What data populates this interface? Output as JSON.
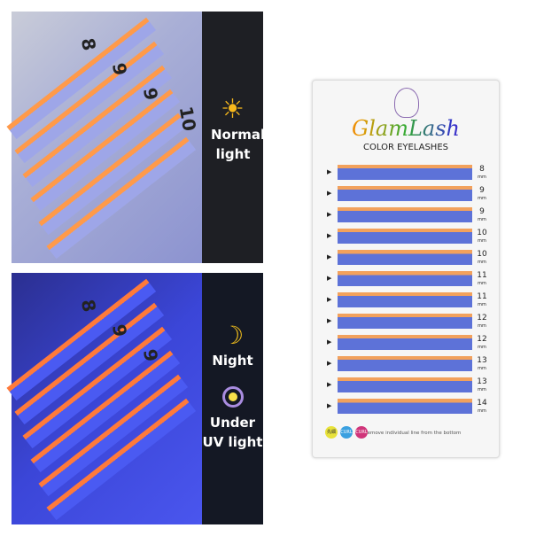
{
  "top_panel": {
    "label_line1": "Normal light",
    "icon": "sun-icon",
    "tray_numbers": [
      "8",
      "9",
      "9",
      "10"
    ]
  },
  "bottom_panel": {
    "label1": "Night",
    "label2_line1": "Under",
    "label2_line2": "UV light",
    "icons": [
      "moon-icon",
      "uv-light-icon"
    ],
    "tray_numbers": [
      "8",
      "9",
      "9"
    ]
  },
  "product": {
    "brand": "GlamLash",
    "subtitle": "COLOR EYELASHES",
    "lengths": [
      "8",
      "9",
      "9",
      "10",
      "10",
      "11",
      "11",
      "12",
      "12",
      "13",
      "13",
      "14"
    ],
    "unit": "mm",
    "footer": "Remove individual line from the bottom",
    "badges": [
      "先細",
      "CURL",
      "CURL"
    ]
  },
  "colors": {
    "orange": "#f2a15c",
    "blue": "#5d72d8",
    "uv_blue": "#4a5af2"
  }
}
